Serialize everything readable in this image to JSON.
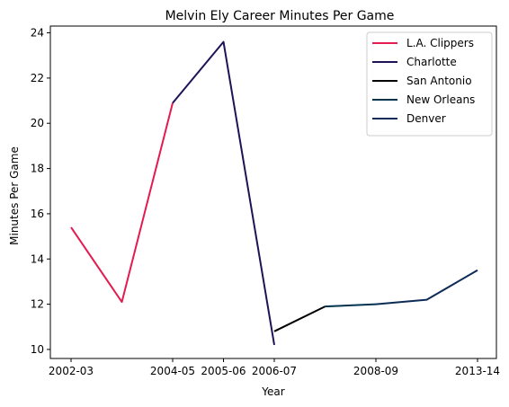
{
  "chart_data": {
    "type": "line",
    "title": "Melvin Ely Career Minutes Per Game",
    "xlabel": "Year",
    "ylabel": "Minutes Per Game",
    "x_tick_labels": [
      "2002-03",
      "2004-05",
      "2005-06",
      "2006-07",
      "2008-09",
      "2013-14"
    ],
    "ylim": [
      9.6,
      24.3
    ],
    "y_ticks": [
      10,
      12,
      14,
      16,
      18,
      20,
      22,
      24
    ],
    "grid": false,
    "legend_position": "top-right",
    "series": [
      {
        "name": "L.A. Clippers",
        "color": "#e31b4f",
        "points": [
          [
            0,
            15.4
          ],
          [
            1,
            12.1
          ],
          [
            2,
            20.9
          ]
        ]
      },
      {
        "name": "Charlotte",
        "color": "#1f1257",
        "points": [
          [
            2,
            20.9
          ],
          [
            3,
            23.6
          ],
          [
            4,
            10.2
          ]
        ]
      },
      {
        "name": "San Antonio",
        "color": "#000000",
        "points": [
          [
            4,
            10.8
          ],
          [
            5,
            11.9
          ]
        ]
      },
      {
        "name": "New Orleans",
        "color": "#00334e",
        "points": [
          [
            5,
            11.9
          ],
          [
            6,
            12.0
          ]
        ]
      },
      {
        "name": "Denver",
        "color": "#0d2b57",
        "points": [
          [
            6,
            12.0
          ],
          [
            7,
            12.2
          ],
          [
            8,
            13.5
          ]
        ]
      }
    ]
  }
}
